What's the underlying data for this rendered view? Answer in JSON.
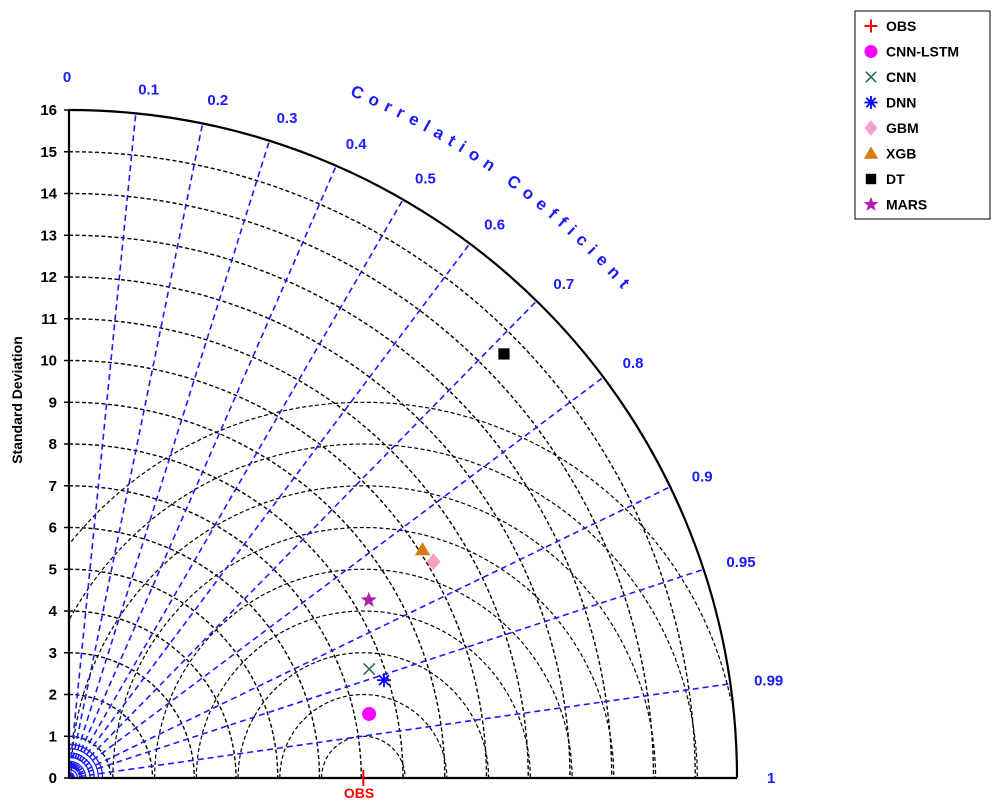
{
  "chart_data": {
    "type": "scatter",
    "subtype": "taylor-diagram",
    "ylabel": "Standard Deviation",
    "correlation_label": "Correlation Coefficient",
    "std_ticks": [
      "0",
      "1",
      "2",
      "3",
      "4",
      "5",
      "6",
      "7",
      "8",
      "9",
      "10",
      "11",
      "12",
      "13",
      "14",
      "15",
      "16"
    ],
    "std_max": 16,
    "correlation_ticks": [
      {
        "value": 0,
        "label": "0"
      },
      {
        "value": 0.1,
        "label": "0.1"
      },
      {
        "value": 0.2,
        "label": "0.2"
      },
      {
        "value": 0.3,
        "label": "0.3"
      },
      {
        "value": 0.4,
        "label": "0.4"
      },
      {
        "value": 0.5,
        "label": "0.5"
      },
      {
        "value": 0.6,
        "label": "0.6"
      },
      {
        "value": 0.7,
        "label": "0.7"
      },
      {
        "value": 0.8,
        "label": "0.8"
      },
      {
        "value": 0.9,
        "label": "0.9"
      },
      {
        "value": 0.95,
        "label": "0.95"
      },
      {
        "value": 0.99,
        "label": "0.99"
      },
      {
        "value": 1,
        "label": "1"
      }
    ],
    "reference_label": "OBS",
    "reference_std": 7.05,
    "legend_position": "top-right",
    "series": [
      {
        "name": "OBS",
        "marker": "plus",
        "color": "#ff0000",
        "std": 7.05,
        "corr": 1.0
      },
      {
        "name": "CNN-LSTM",
        "marker": "circle",
        "color": "#ff00ff",
        "std": 7.35,
        "corr": 0.978
      },
      {
        "name": "CNN",
        "marker": "x",
        "color": "#2e6b5e",
        "std": 7.65,
        "corr": 0.94
      },
      {
        "name": "DNN",
        "marker": "asterisk",
        "color": "#0000ff",
        "std": 7.9,
        "corr": 0.955
      },
      {
        "name": "GBM",
        "marker": "diamond",
        "color": "#f4a0c8",
        "std": 10.15,
        "corr": 0.86
      },
      {
        "name": "XGB",
        "marker": "triangle",
        "color": "#d97a1a",
        "std": 10.08,
        "corr": 0.84
      },
      {
        "name": "DT",
        "marker": "square",
        "color": "#000000",
        "std": 14.55,
        "corr": 0.716
      },
      {
        "name": "MARS",
        "marker": "star",
        "color": "#b020b0",
        "std": 8.35,
        "corr": 0.86
      }
    ]
  }
}
